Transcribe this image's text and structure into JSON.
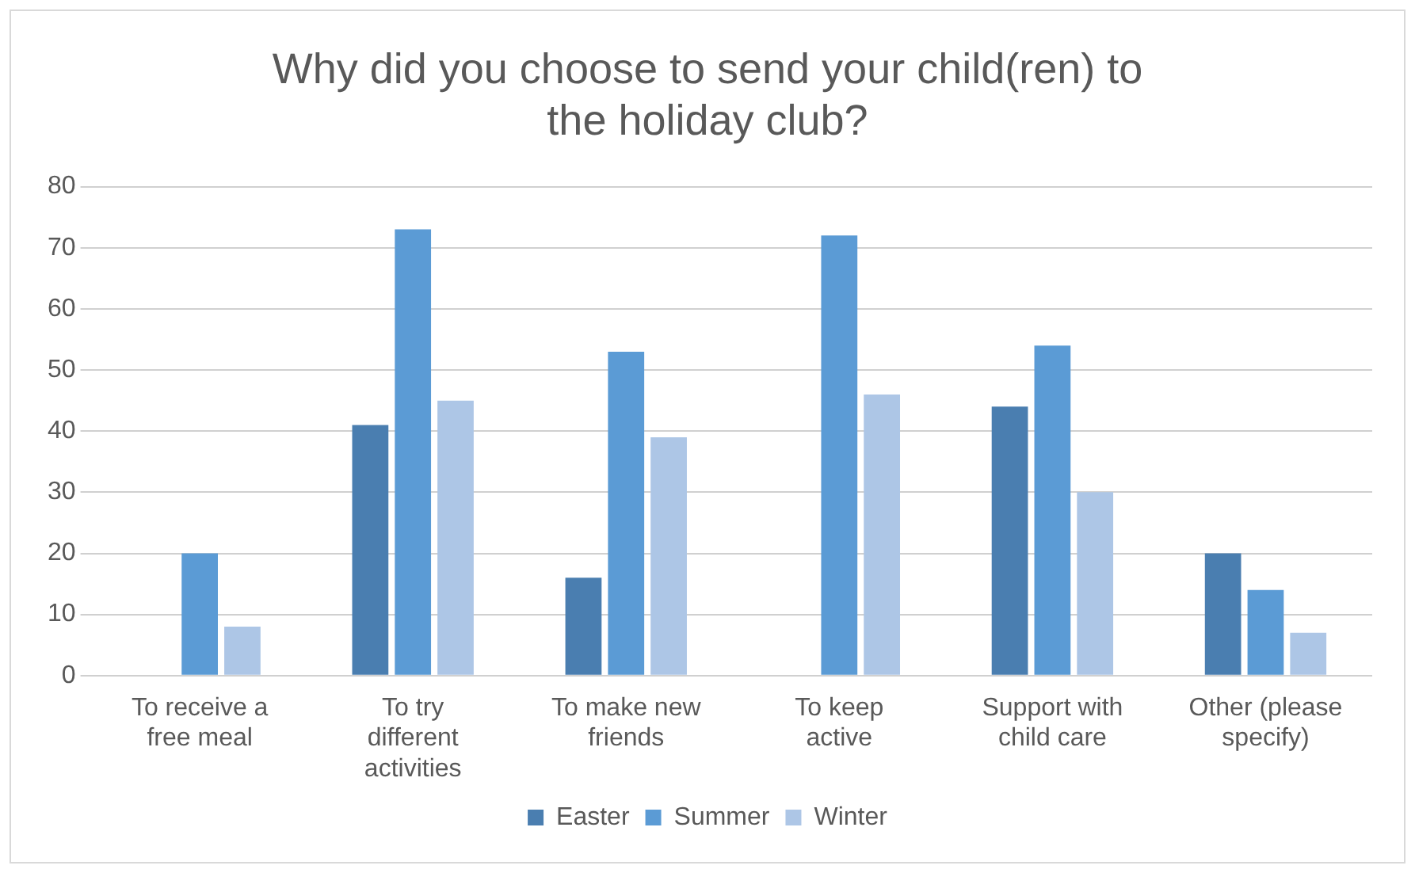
{
  "chart_data": {
    "type": "bar",
    "title": "Why did you choose to send your child(ren) to the holiday club?",
    "categories": [
      "To receive a free meal",
      "To try different activities",
      "To make new friends",
      "To keep active",
      "Support with child care",
      "Other (please specify)"
    ],
    "series": [
      {
        "name": "Easter",
        "color": "#4a7eb0",
        "values": [
          0,
          41,
          16,
          0,
          44,
          20
        ]
      },
      {
        "name": "Summer",
        "color": "#5b9bd5",
        "values": [
          20,
          73,
          53,
          72,
          54,
          14
        ]
      },
      {
        "name": "Winter",
        "color": "#adc6e6",
        "values": [
          8,
          45,
          39,
          46,
          30,
          7
        ]
      }
    ],
    "ylim": [
      0,
      80
    ],
    "yticks": [
      0,
      10,
      20,
      30,
      40,
      50,
      60,
      70,
      80
    ],
    "grid": "y",
    "legend": "bottom"
  }
}
